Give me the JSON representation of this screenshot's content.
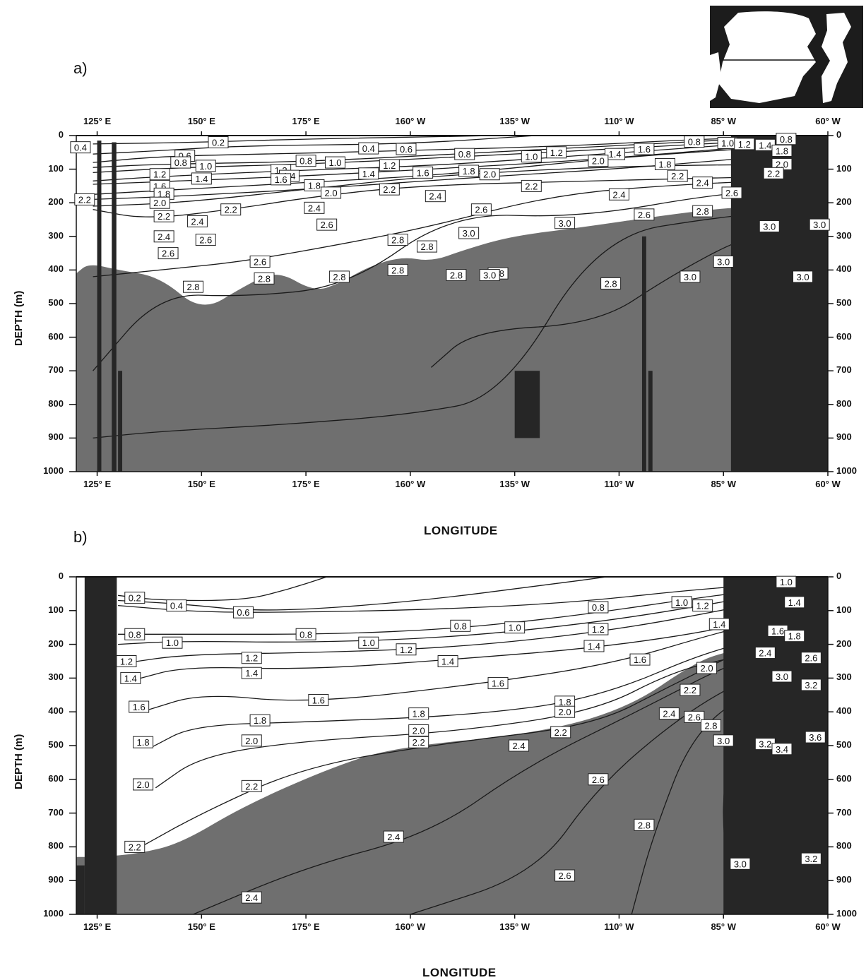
{
  "panels": [
    {
      "label": "a)",
      "x_title": "LONGITUDE",
      "y_title": "DEPTH (m)",
      "top_x_ticks": [
        "125° E",
        "150° E",
        "175° E",
        "160° W",
        "135° W",
        "110° W",
        "85° W",
        "60° W"
      ],
      "bottom_x_ticks": [
        "125° E",
        "150° E",
        "175° E",
        "160° W",
        "135° W",
        "110° W",
        "85° W",
        "60° W"
      ],
      "left_y_ticks": [
        "0",
        "100",
        "200",
        "300",
        "400",
        "500",
        "600",
        "700",
        "800",
        "900",
        "1000"
      ],
      "right_y_ticks": [
        "0",
        "100",
        "200",
        "300",
        "400",
        "500",
        "600",
        "700",
        "800",
        "900",
        "1000"
      ]
    },
    {
      "label": "b)",
      "x_title": "LONGITUDE",
      "y_title": "DEPTH (m)",
      "bottom_x_ticks": [
        "125° E",
        "150° E",
        "175° E",
        "160° W",
        "135° W",
        "110° W",
        "85° W",
        "60° W"
      ],
      "left_y_ticks": [
        "0",
        "100",
        "200",
        "300",
        "400",
        "500",
        "600",
        "700",
        "800",
        "900",
        "1000"
      ],
      "right_y_ticks": [
        "0",
        "100",
        "200",
        "300",
        "400",
        "500",
        "600",
        "700",
        "800",
        "900",
        "1000"
      ]
    }
  ],
  "colors": {
    "shade": "#6f6f6f",
    "land": "#262626",
    "line": "#1a1a1a"
  },
  "chart_data": [
    {
      "type": "contour",
      "panel": "a",
      "xlabel": "LONGITUDE",
      "ylabel": "DEPTH (m)",
      "ylim": [
        1000,
        0
      ],
      "xlim_deg_east": [
        120,
        300
      ],
      "shaded_threshold": 2.2,
      "contours": [
        {
          "level": 0.2,
          "label_points": [
            [
              148,
              20
            ]
          ]
        },
        {
          "level": 0.4,
          "label_points": [
            [
              121,
              35
            ],
            [
              164,
              35
            ]
          ]
        },
        {
          "level": 0.6,
          "label_points": [
            [
              146,
              60
            ],
            [
              189,
              40
            ]
          ]
        },
        {
          "level": 0.8,
          "label_points": [
            [
              142,
              80
            ],
            [
              171,
              75
            ],
            [
              197,
              55
            ],
            [
              264,
              18
            ],
            [
              279,
              10
            ]
          ]
        },
        {
          "level": 1.0,
          "label_points": [
            [
              148,
              90
            ],
            [
              178,
              80
            ],
            [
              220,
              60
            ],
            [
              268,
              25
            ]
          ]
        },
        {
          "level": 1.2,
          "label_points": [
            [
              138,
              120
            ],
            [
              164,
              100
            ],
            [
              186,
              90
            ],
            [
              231,
              50
            ],
            [
              272,
              25
            ]
          ]
        },
        {
          "level": 1.4,
          "label_points": [
            [
              148,
              130
            ],
            [
              164,
              120
            ],
            [
              178,
              115
            ],
            [
              197,
              80
            ],
            [
              236,
              55
            ],
            [
              276,
              30
            ]
          ]
        },
        {
          "level": 1.6,
          "label_points": [
            [
              140,
              160
            ],
            [
              164,
              135
            ],
            [
              186,
              110
            ],
            [
              212,
              85
            ],
            [
              244,
              40
            ]
          ]
        },
        {
          "level": 1.8,
          "label_points": [
            [
              139,
              180
            ],
            [
              160,
              150
            ],
            [
              201,
              105
            ],
            [
              236,
              90
            ],
            [
              280,
              45
            ]
          ]
        },
        {
          "level": 2.0,
          "label_points": [
            [
              140,
              200
            ],
            [
              158,
              185
            ],
            [
              185,
              135
            ],
            [
              206,
              115
            ],
            [
              246,
              80
            ],
            [
              280,
              85
            ]
          ]
        },
        {
          "level": 2.2,
          "label_points": [
            [
              122,
              190
            ],
            [
              140,
              240
            ],
            [
              157,
              210
            ],
            [
              177,
              165
            ],
            [
              215,
              150
            ],
            [
              240,
              130
            ],
            [
              280,
              120
            ]
          ]
        },
        {
          "level": 2.4,
          "label_points": [
            [
              146,
              255
            ],
            [
              141,
              300
            ],
            [
              173,
              215
            ],
            [
              212,
              180
            ],
            [
              232,
              170
            ],
            [
              259,
              140
            ]
          ]
        },
        {
          "level": 2.6,
          "label_points": [
            [
              148,
              310
            ],
            [
              142,
              350
            ],
            [
              172,
              265
            ],
            [
              161,
              375
            ],
            [
              215,
              215
            ],
            [
              230,
              230
            ],
            [
              269,
              170
            ]
          ]
        },
        {
          "level": 2.8,
          "label_points": [
            [
              148,
              450
            ],
            [
              164,
              425
            ],
            [
              185,
              310
            ],
            [
              177,
              340
            ],
            [
              196,
              330
            ],
            [
              183,
              415
            ],
            [
              188,
              400
            ],
            [
              206,
              260
            ],
            [
              257,
              215
            ]
          ]
        },
        {
          "level": 3.0,
          "label_points": [
            [
              202,
              290
            ],
            [
              250,
              255
            ],
            [
              211,
              410
            ],
            [
              253,
              425
            ],
            [
              263,
              355
            ],
            [
              290,
              255
            ],
            [
              289,
              420
            ]
          ]
        }
      ]
    },
    {
      "type": "contour",
      "panel": "b",
      "xlabel": "LONGITUDE",
      "ylabel": "DEPTH (m)",
      "ylim": [
        1000,
        0
      ],
      "xlim_deg_east": [
        120,
        300
      ],
      "shaded_threshold": 2.2,
      "contours": [
        {
          "level": 0.2,
          "label_points": [
            [
              135,
              60
            ]
          ]
        },
        {
          "level": 0.4,
          "label_points": [
            [
              143,
              85
            ]
          ]
        },
        {
          "level": 0.6,
          "label_points": [
            [
              160,
              105
            ]
          ]
        },
        {
          "level": 0.8,
          "label_points": [
            [
              133,
              170
            ],
            [
              178,
              170
            ],
            [
              209,
              145
            ],
            [
              240,
              90
            ]
          ]
        },
        {
          "level": 1.0,
          "label_points": [
            [
              143,
              195
            ],
            [
              187,
              195
            ],
            [
              221,
              150
            ],
            [
              259,
              75
            ],
            [
              281,
              15
            ]
          ]
        },
        {
          "level": 1.2,
          "label_points": [
            [
              132,
              250
            ],
            [
              160,
              240
            ],
            [
              196,
              215
            ],
            [
              237,
              160
            ],
            [
              267,
              95
            ]
          ]
        },
        {
          "level": 1.4,
          "label_points": [
            [
              133,
              300
            ],
            [
              160,
              280
            ],
            [
              207,
              250
            ],
            [
              237,
              205
            ],
            [
              268,
              150
            ],
            [
              284,
              75
            ]
          ]
        },
        {
          "level": 1.6,
          "label_points": [
            [
              135,
              385
            ],
            [
              178,
              365
            ],
            [
              222,
              315
            ],
            [
              253,
              260
            ],
            [
              278,
              165
            ]
          ]
        },
        {
          "level": 1.8,
          "label_points": [
            [
              136,
              490
            ],
            [
              165,
              425
            ],
            [
              206,
              405
            ],
            [
              245,
              370
            ],
            [
              284,
              175
            ]
          ]
        },
        {
          "level": 2.0,
          "label_points": [
            [
              136,
              615
            ],
            [
              164,
              485
            ],
            [
              206,
              455
            ],
            [
              245,
              400
            ],
            [
              263,
              270
            ]
          ]
        },
        {
          "level": 2.2,
          "label_points": [
            [
              134,
              800
            ],
            [
              162,
              620
            ],
            [
              206,
              490
            ],
            [
              245,
              450
            ],
            [
              261,
              330
            ]
          ]
        },
        {
          "level": 2.4,
          "label_points": [
            [
              162,
              950
            ],
            [
              202,
              770
            ],
            [
              229,
              515
            ],
            [
              262,
              405
            ],
            [
              276,
              225
            ]
          ]
        },
        {
          "level": 2.6,
          "label_points": [
            [
              227,
              885
            ],
            [
              245,
              600
            ],
            [
              268,
              410
            ],
            [
              285,
              240
            ]
          ]
        },
        {
          "level": 2.8,
          "label_points": [
            [
              259,
              735
            ],
            [
              270,
              440
            ]
          ]
        },
        {
          "level": 3.0,
          "label_points": [
            [
              276,
              490
            ],
            [
              276,
              840
            ],
            [
              278,
              295
            ]
          ]
        },
        {
          "level": 3.2,
          "label_points": [
            [
              283,
              485
            ],
            [
              296,
              830
            ],
            [
              292,
              310
            ]
          ]
        },
        {
          "level": 3.4,
          "label_points": [
            [
              288,
              510
            ]
          ]
        },
        {
          "level": 3.6,
          "label_points": [
            [
              296,
              475
            ]
          ]
        }
      ]
    }
  ]
}
